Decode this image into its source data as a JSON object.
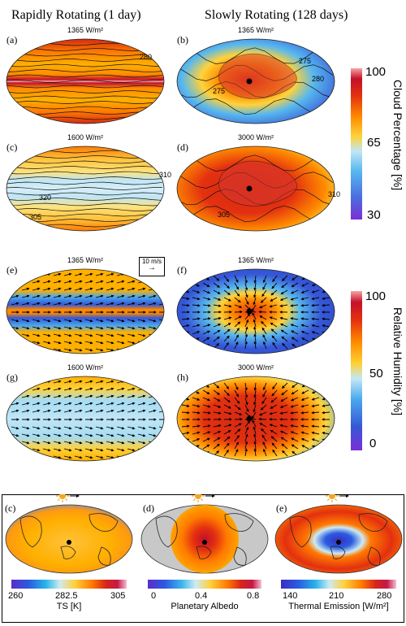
{
  "columns": {
    "left_title": "Rapidly Rotating (1 day)",
    "right_title": "Slowly Rotating (128 days)"
  },
  "panels": [
    {
      "id": "a",
      "label": "(a)",
      "title": "1365 W/m²",
      "rotation": "rapid",
      "field": "cloud",
      "contours": [
        "280"
      ]
    },
    {
      "id": "b",
      "label": "(b)",
      "title": "1365 W/m²",
      "rotation": "slow",
      "field": "cloud",
      "contours": [
        "275",
        "280",
        "275"
      ]
    },
    {
      "id": "c",
      "label": "(c)",
      "title": "1600 W/m²",
      "rotation": "rapid",
      "field": "cloud",
      "contours": [
        "310",
        "320",
        "305"
      ]
    },
    {
      "id": "d",
      "label": "(d)",
      "title": "3000 W/m²",
      "rotation": "slow",
      "field": "cloud",
      "contours": [
        "310",
        "305"
      ]
    },
    {
      "id": "e",
      "label": "(e)",
      "title": "1365 W/m²",
      "rotation": "rapid",
      "field": "rh"
    },
    {
      "id": "f",
      "label": "(f)",
      "title": "1365 W/m²",
      "rotation": "slow",
      "field": "rh"
    },
    {
      "id": "g",
      "label": "(g)",
      "title": "1600 W/m²",
      "rotation": "rapid",
      "field": "rh"
    },
    {
      "id": "h",
      "label": "(h)",
      "title": "3000 W/m²",
      "rotation": "slow",
      "field": "rh"
    }
  ],
  "wind_scale": "10 m/s",
  "colorbars": {
    "cloud": {
      "label": "Cloud Percentage [%]",
      "ticks": [
        "100",
        "65",
        "30"
      ]
    },
    "rh": {
      "label": "Relative Humidity [%]",
      "ticks": [
        "100",
        "50",
        "0"
      ]
    }
  },
  "bottom_panels": [
    {
      "id": "bc",
      "label": "(c)",
      "bar_label": "TS [K]",
      "ticks": [
        "260",
        "282.5",
        "305"
      ]
    },
    {
      "id": "bd",
      "label": "(d)",
      "bar_label": "Planetary Albedo",
      "ticks": [
        "0",
        "0.4",
        "0.8"
      ]
    },
    {
      "id": "be",
      "label": "(e)",
      "bar_label": "Thermal Emission [W/m²]",
      "ticks": [
        "140",
        "210",
        "280"
      ]
    }
  ],
  "chart_data": {
    "type": "heatmap",
    "title": "",
    "fields": [
      {
        "name": "Cloud Percentage [%]",
        "range": [
          30,
          100
        ],
        "panels": [
          "a",
          "b",
          "c",
          "d"
        ]
      },
      {
        "name": "Relative Humidity [%]",
        "range": [
          0,
          100
        ],
        "panels": [
          "e",
          "f",
          "g",
          "h"
        ]
      },
      {
        "name": "TS [K]",
        "range": [
          260,
          305
        ]
      },
      {
        "name": "Planetary Albedo",
        "range": [
          0,
          0.8
        ]
      },
      {
        "name": "Thermal Emission [W/m²]",
        "range": [
          140,
          280
        ]
      }
    ],
    "contour_labels": {
      "a": [
        "280"
      ],
      "b": [
        "275",
        "280",
        "275"
      ],
      "c": [
        "310",
        "320",
        "305"
      ],
      "d": [
        "310",
        "305"
      ]
    }
  },
  "colors": {
    "cloud_scale": [
      "#7b2fd6",
      "#4a6fe0",
      "#57b8ee",
      "#bfe6f6",
      "#ffd23a",
      "#ff8a00",
      "#e33010",
      "#c4102a",
      "#f7a3a3"
    ],
    "rh_scale": [
      "#7b2fd6",
      "#3658d6",
      "#4aa8ee",
      "#c3e8f5",
      "#ffcf2f",
      "#ff8a00",
      "#e33010",
      "#c4102a",
      "#f7a3a3"
    ],
    "ts_scale": [
      "#5b2dc9",
      "#2b5ae0",
      "#27b6e9",
      "#cfeaf0",
      "#ffd13b",
      "#ff7a00",
      "#d6261b",
      "#c51847",
      "#f5bfd0"
    ],
    "albedo_scale": [
      "#5b2dc9",
      "#2b5ae0",
      "#3fb5ec",
      "#cdebf2",
      "#ffd13b",
      "#ff7a00",
      "#d6261b",
      "#c51847",
      "#f5bfd0"
    ],
    "te_scale": [
      "#3b2cc0",
      "#2a5de0",
      "#29b3ea",
      "#cdeaf2",
      "#ffd13b",
      "#ff7a00",
      "#d6261b",
      "#c51847",
      "#f5bfd0"
    ]
  }
}
